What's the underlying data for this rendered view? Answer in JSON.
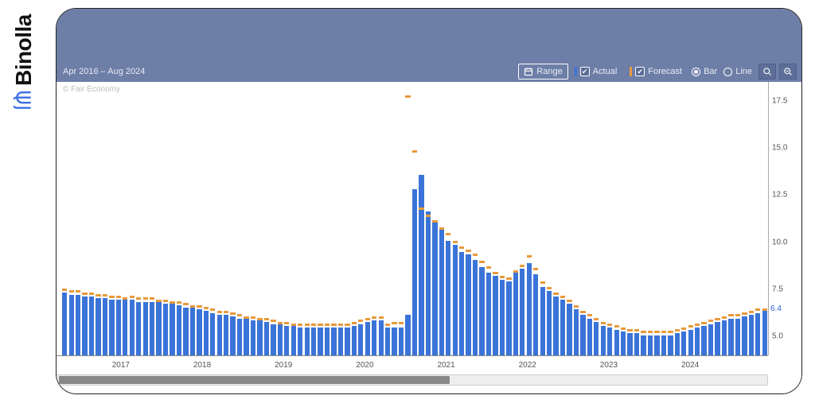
{
  "brand": {
    "name": "Binolla",
    "color": "#3a6ee8"
  },
  "header": {
    "bg": "#6d7ea7",
    "date_range": "Apr 2016 – Aug 2024",
    "range_label": "Range",
    "legend": {
      "actual": {
        "label": "Actual",
        "color": "#3b74d8",
        "checked": true
      },
      "forecast": {
        "label": "Forecast",
        "color": "#e89a3c",
        "checked": true
      }
    },
    "view": {
      "bar": "Bar",
      "line": "Line",
      "selected": "bar"
    }
  },
  "chart": {
    "type": "bar",
    "credit": "© Fair Economy",
    "background_color": "#ffffff",
    "actual_color": "#3b74d8",
    "forecast_color": "#e89a3c",
    "y": {
      "min": 4.0,
      "max": 18.5,
      "ticks": [
        5.0,
        7.5,
        10.0,
        12.5,
        15.0,
        17.5
      ],
      "latest_label": "6.4",
      "latest_value": 6.4,
      "label_fontsize": 10,
      "label_color": "#555555"
    },
    "x": {
      "ticks": [
        2017,
        2018,
        2019,
        2020,
        2021,
        2022,
        2023,
        2024
      ],
      "label_fontsize": 10,
      "label_color": "#555555"
    },
    "bar_gap_ratio": 0.25,
    "series": {
      "actual": [
        7.4,
        7.3,
        7.3,
        7.2,
        7.2,
        7.1,
        7.1,
        7.0,
        7.0,
        7.0,
        7.0,
        6.9,
        6.9,
        6.9,
        6.9,
        6.8,
        6.8,
        6.7,
        6.6,
        6.6,
        6.5,
        6.4,
        6.3,
        6.2,
        6.2,
        6.1,
        6.0,
        6.0,
        5.9,
        5.9,
        5.8,
        5.7,
        5.7,
        5.6,
        5.6,
        5.5,
        5.5,
        5.5,
        5.5,
        5.5,
        5.5,
        5.5,
        5.5,
        5.6,
        5.7,
        5.8,
        5.9,
        5.9,
        5.5,
        5.5,
        5.5,
        6.2,
        13.0,
        13.8,
        11.8,
        11.3,
        10.8,
        10.2,
        10.0,
        9.6,
        9.5,
        9.2,
        8.8,
        8.5,
        8.3,
        8.1,
        8.0,
        8.6,
        8.7,
        9.0,
        8.4,
        7.7,
        7.5,
        7.2,
        7.0,
        6.8,
        6.5,
        6.2,
        6.0,
        5.8,
        5.6,
        5.5,
        5.4,
        5.3,
        5.2,
        5.2,
        5.1,
        5.1,
        5.1,
        5.1,
        5.1,
        5.2,
        5.3,
        5.4,
        5.5,
        5.6,
        5.7,
        5.8,
        5.9,
        6.0,
        6.0,
        6.1,
        6.2,
        6.3,
        6.4
      ],
      "forecast": [
        7.5,
        7.4,
        7.4,
        7.3,
        7.3,
        7.2,
        7.2,
        7.1,
        7.1,
        7.0,
        7.1,
        7.0,
        7.0,
        7.0,
        6.9,
        6.9,
        6.8,
        6.8,
        6.7,
        6.6,
        6.6,
        6.5,
        6.4,
        6.3,
        6.3,
        6.2,
        6.1,
        6.0,
        6.0,
        5.9,
        5.9,
        5.8,
        5.7,
        5.7,
        5.6,
        5.6,
        5.6,
        5.6,
        5.6,
        5.6,
        5.6,
        5.6,
        5.6,
        5.7,
        5.8,
        5.9,
        6.0,
        6.0,
        5.6,
        5.7,
        5.7,
        18.0,
        15.0,
        11.9,
        11.5,
        11.2,
        10.8,
        10.5,
        10.1,
        9.8,
        9.6,
        9.4,
        9.0,
        8.7,
        8.4,
        8.2,
        8.1,
        8.5,
        8.8,
        9.3,
        8.6,
        7.9,
        7.6,
        7.3,
        7.1,
        6.9,
        6.6,
        6.3,
        6.1,
        5.9,
        5.7,
        5.6,
        5.5,
        5.4,
        5.3,
        5.3,
        5.2,
        5.2,
        5.2,
        5.2,
        5.2,
        5.3,
        5.4,
        5.5,
        5.6,
        5.7,
        5.8,
        5.9,
        6.0,
        6.1,
        6.1,
        6.2,
        6.3,
        6.4,
        6.4
      ]
    },
    "start_year_month": [
      2016,
      4
    ]
  }
}
